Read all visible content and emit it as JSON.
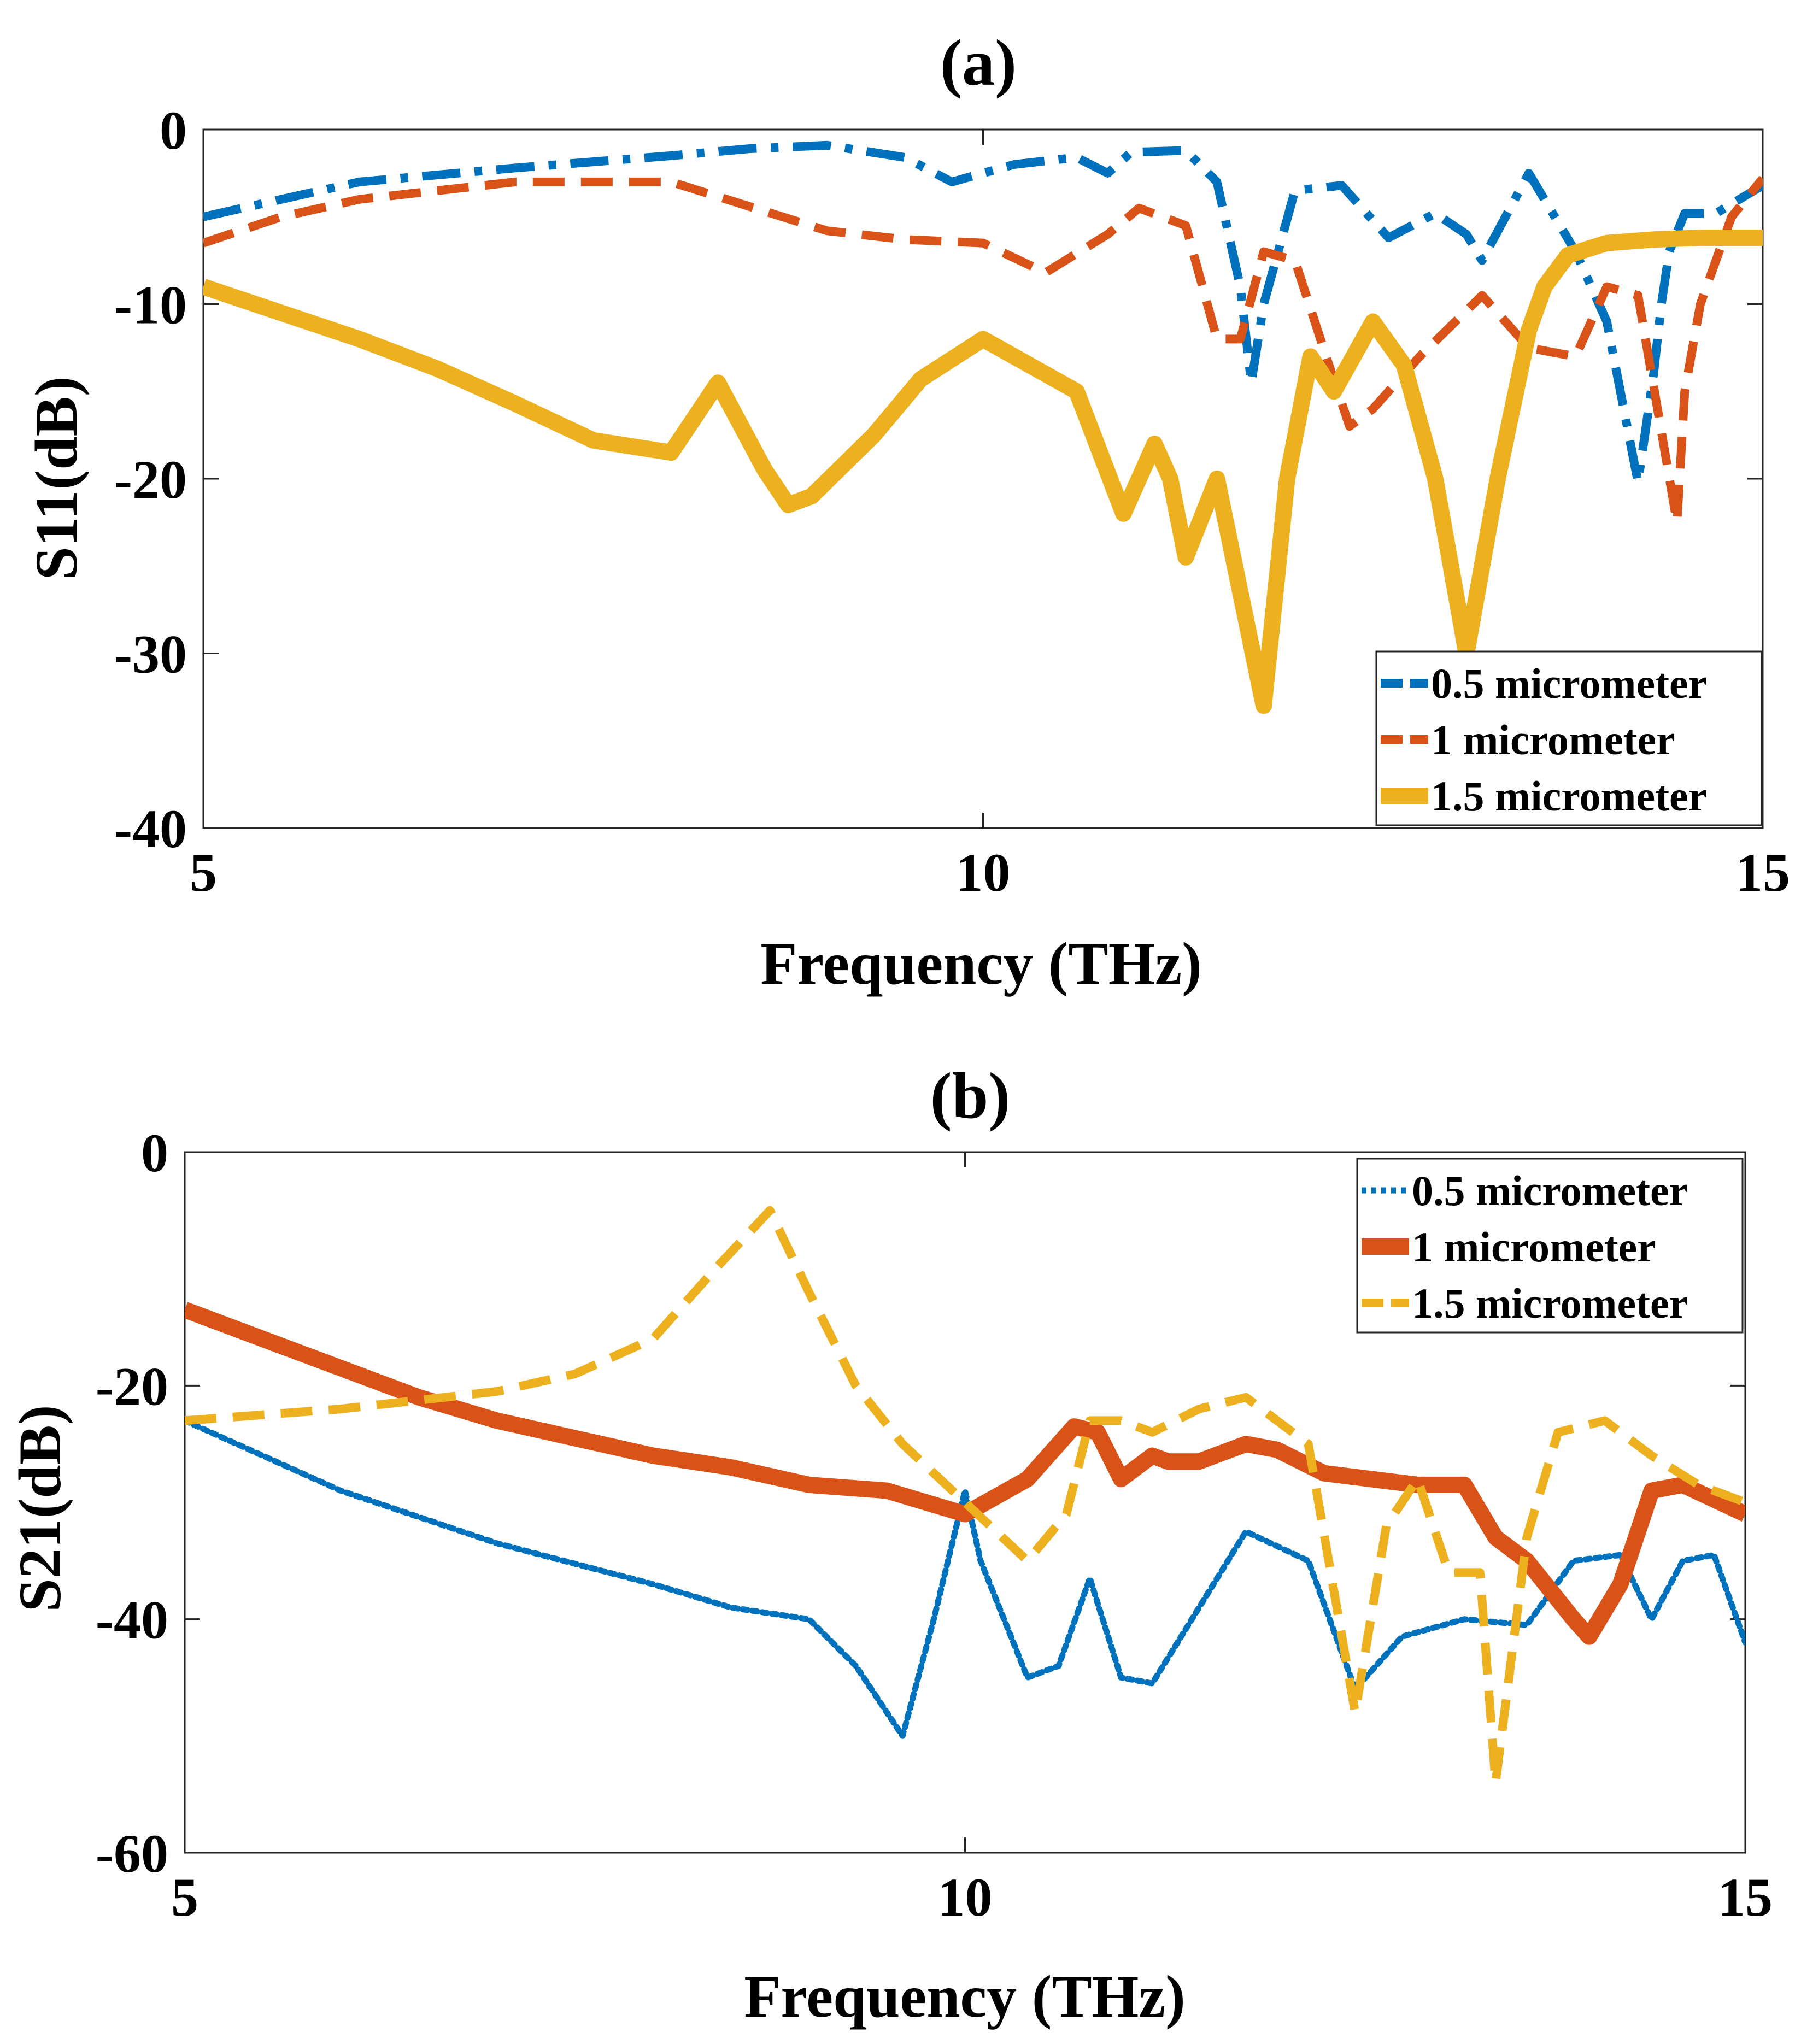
{
  "chart_data": [
    {
      "id": "a",
      "type": "line",
      "title": "(a)",
      "xlabel": "Frequency (THz)",
      "ylabel": "S11(dB)",
      "xlim": [
        5,
        15
      ],
      "ylim": [
        -40,
        0
      ],
      "xticks": [
        5,
        10,
        15
      ],
      "yticks": [
        0,
        -10,
        -20,
        -30,
        -40
      ],
      "legend_position": "bottom-right",
      "series": [
        {
          "name": "0.5 micrometer",
          "color": "#0072BD",
          "style": "dash-dot",
          "x": [
            5,
            5.5,
            6,
            7,
            8,
            8.5,
            9,
            9.5,
            9.8,
            10.2,
            10.6,
            10.8,
            10.95,
            11.3,
            11.5,
            11.65,
            11.72,
            11.8,
            12.0,
            12.3,
            12.6,
            12.9,
            13.1,
            13.2,
            13.5,
            13.8,
            14.0,
            14.2,
            14.3,
            14.35,
            14.4,
            14.5,
            14.7,
            15
          ],
          "y": [
            -5,
            -4,
            -3,
            -2.2,
            -1.5,
            -1.1,
            -0.9,
            -1.6,
            -3,
            -2,
            -1.6,
            -2.5,
            -1.3,
            -1.2,
            -3,
            -9,
            -14.5,
            -10,
            -3.5,
            -3.2,
            -6.2,
            -4.8,
            -6,
            -7.5,
            -2.5,
            -7,
            -11,
            -20.2,
            -14,
            -10,
            -7,
            -4.8,
            -4.8,
            -3.2
          ]
        },
        {
          "name": "1 micrometer",
          "color": "#D95319",
          "style": "dashed",
          "x": [
            5,
            5.5,
            6,
            7,
            8,
            9,
            9.5,
            10,
            10.4,
            10.8,
            11.0,
            11.3,
            11.5,
            11.65,
            11.8,
            12.0,
            12.2,
            12.35,
            12.5,
            12.8,
            13.2,
            13.5,
            13.8,
            14.0,
            14.2,
            14.45,
            14.5,
            14.6,
            14.8,
            15
          ],
          "y": [
            -6.5,
            -5,
            -4,
            -3,
            -3,
            -5.8,
            -6.3,
            -6.5,
            -8.2,
            -6,
            -4.5,
            -5.5,
            -12,
            -12,
            -7,
            -7.5,
            -13,
            -17,
            -16,
            -13,
            -9.5,
            -12.5,
            -13,
            -9,
            -9.5,
            -22.5,
            -15,
            -10,
            -5,
            -2.8
          ]
        },
        {
          "name": "1.5 micrometer",
          "color": "#EDB120",
          "style": "solid-star",
          "x": [
            5,
            5.5,
            6,
            6.5,
            7,
            7.5,
            8,
            8.3,
            8.6,
            8.75,
            8.9,
            9.3,
            9.6,
            10,
            10.6,
            10.9,
            11.1,
            11.2,
            11.3,
            11.5,
            11.8,
            11.95,
            12.1,
            12.25,
            12.5,
            12.7,
            12.9,
            13.1,
            13.3,
            13.5,
            13.6,
            13.75,
            14.0,
            14.3,
            14.6,
            15
          ],
          "y": [
            -9,
            -10.5,
            -12,
            -13.7,
            -15.7,
            -17.8,
            -18.5,
            -14.5,
            -19.5,
            -21.5,
            -21,
            -17.5,
            -14.3,
            -12,
            -15,
            -22,
            -18,
            -20,
            -24.5,
            -20,
            -33,
            -20,
            -13,
            -15,
            -11,
            -13.5,
            -20,
            -30,
            -20,
            -11.5,
            -9,
            -7.2,
            -6.5,
            -6.3,
            -6.2,
            -6.2
          ]
        }
      ]
    },
    {
      "id": "b",
      "type": "line",
      "title": "(b)",
      "xlabel": "Frequency (THz)",
      "ylabel": "S21(dB)",
      "xlim": [
        5,
        15
      ],
      "ylim": [
        -60,
        0
      ],
      "xticks": [
        5,
        10,
        15
      ],
      "yticks": [
        0,
        -20,
        -40,
        -60
      ],
      "legend_position": "top-right",
      "series": [
        {
          "name": "0.5 micrometer",
          "color": "#0072BD",
          "style": "dotted",
          "x": [
            5,
            6,
            7,
            8,
            8.5,
            9,
            9.3,
            9.6,
            9.8,
            10,
            10.1,
            10.4,
            10.6,
            10.8,
            11.0,
            11.2,
            11.5,
            11.8,
            12.2,
            12.5,
            12.8,
            13.2,
            13.6,
            13.9,
            14.2,
            14.4,
            14.6,
            14.8,
            15
          ],
          "y": [
            -23,
            -29,
            -33.5,
            -37,
            -39,
            -40,
            -44,
            -50,
            -40,
            -29,
            -35,
            -45,
            -44,
            -36.5,
            -45,
            -45.5,
            -39,
            -32.5,
            -35,
            -46,
            -41.5,
            -40,
            -40.5,
            -35,
            -34.5,
            -40,
            -35,
            -34.5,
            -42
          ]
        },
        {
          "name": "1 micrometer",
          "color": "#D95319",
          "style": "solid-star",
          "x": [
            5,
            5.5,
            6,
            6.5,
            7,
            7.5,
            8,
            8.5,
            9,
            9.5,
            10,
            10.4,
            10.7,
            10.85,
            11.0,
            11.2,
            11.3,
            11.5,
            11.8,
            12.0,
            12.3,
            12.6,
            12.9,
            13.2,
            13.4,
            13.6,
            13.9,
            14.0,
            14.2,
            14.4,
            14.6,
            15
          ],
          "y": [
            -13.5,
            -16,
            -18.5,
            -21,
            -23,
            -24.5,
            -26,
            -27,
            -28.5,
            -29,
            -31,
            -28,
            -23.5,
            -24,
            -28,
            -26,
            -26.5,
            -26.5,
            -25,
            -25.5,
            -27.5,
            -28,
            -28.5,
            -28.5,
            -33,
            -35,
            -40,
            -41.5,
            -37,
            -29,
            -28.5,
            -31
          ]
        },
        {
          "name": "1.5 micrometer",
          "color": "#EDB120",
          "style": "dashed",
          "x": [
            5,
            6,
            7,
            7.5,
            8,
            8.4,
            8.75,
            9,
            9.3,
            9.6,
            10,
            10.4,
            10.65,
            10.8,
            11.0,
            11.2,
            11.5,
            11.8,
            12.2,
            12.5,
            12.7,
            12.9,
            13.1,
            13.3,
            13.4,
            13.6,
            13.8,
            14.1,
            14.4,
            14.7,
            15
          ],
          "y": [
            -23,
            -22,
            -20.5,
            -19,
            -16,
            -10,
            -5,
            -12,
            -20,
            -25,
            -30,
            -35,
            -31,
            -23,
            -23,
            -24,
            -22,
            -21,
            -25,
            -48,
            -32,
            -28,
            -36,
            -36,
            -54,
            -33,
            -24,
            -23,
            -26,
            -28.5,
            -30
          ]
        }
      ]
    }
  ]
}
